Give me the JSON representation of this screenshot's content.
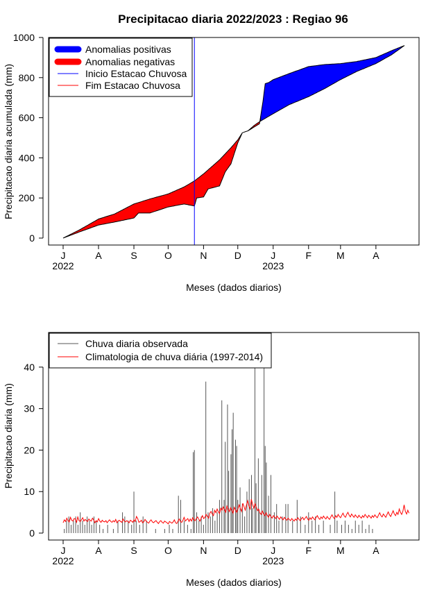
{
  "chart_data": [
    {
      "type": "area",
      "title": "Precipitacao diaria 2022/2023 : Regiao 96",
      "xlabel": "Meses (dados diarios)",
      "ylabel": "Precipitacao diaria acumulada (mm)",
      "ylim": [
        0,
        1000
      ],
      "yticks": [
        "0",
        "200",
        "400",
        "600",
        "800",
        "1000"
      ],
      "month_ticks": [
        "J",
        "A",
        "S",
        "O",
        "N",
        "D",
        "J",
        "F",
        "M",
        "A"
      ],
      "year_labels": [
        "2022",
        "2023"
      ],
      "x_start": "2022-07-01",
      "x_end": "2023-04-30",
      "legend": {
        "position": "top-left",
        "entries": [
          {
            "label": "Anomalias positivas",
            "color": "#0000ff",
            "style": "thick"
          },
          {
            "label": "Anomalias negativas",
            "color": "#ff0000",
            "style": "thick"
          },
          {
            "label": "Inicio Estacao Chuvosa",
            "color": "#0000ff",
            "style": "thin"
          },
          {
            "label": "Fim Estacao Chuvosa",
            "color": "#ff0000",
            "style": "thin"
          }
        ]
      },
      "rainy_season_start": "2022-10-24",
      "series": [
        {
          "name": "Climatologia",
          "dates": [
            "2022-07-01",
            "2022-07-15",
            "2022-08-01",
            "2022-08-15",
            "2022-09-01",
            "2022-09-15",
            "2022-10-01",
            "2022-10-15",
            "2022-10-24",
            "2022-11-01",
            "2022-11-15",
            "2022-11-25",
            "2022-12-01",
            "2022-12-05",
            "2022-12-10",
            "2022-12-15",
            "2022-12-20",
            "2023-01-01",
            "2023-01-15",
            "2023-02-01",
            "2023-02-15",
            "2023-03-01",
            "2023-03-15",
            "2023-04-01",
            "2023-04-15",
            "2023-04-26"
          ],
          "values": [
            0,
            40,
            95,
            120,
            170,
            195,
            220,
            255,
            285,
            320,
            390,
            450,
            490,
            525,
            535,
            560,
            580,
            620,
            665,
            705,
            745,
            790,
            830,
            870,
            915,
            960
          ]
        },
        {
          "name": "Observado",
          "dates": [
            "2022-07-01",
            "2022-07-15",
            "2022-08-01",
            "2022-08-15",
            "2022-09-01",
            "2022-09-05",
            "2022-09-15",
            "2022-10-01",
            "2022-10-15",
            "2022-10-24",
            "2022-10-26",
            "2022-11-01",
            "2022-11-05",
            "2022-11-15",
            "2022-11-20",
            "2022-11-25",
            "2022-12-01",
            "2022-12-05",
            "2022-12-10",
            "2022-12-20",
            "2022-12-23",
            "2022-12-25",
            "2022-12-28",
            "2023-01-01",
            "2023-01-15",
            "2023-02-01",
            "2023-02-15",
            "2023-03-01",
            "2023-03-15",
            "2023-04-01",
            "2023-04-15",
            "2023-04-26"
          ],
          "values": [
            0,
            30,
            65,
            80,
            100,
            125,
            125,
            155,
            170,
            160,
            200,
            205,
            245,
            260,
            330,
            370,
            475,
            525,
            535,
            570,
            680,
            770,
            775,
            790,
            820,
            855,
            865,
            870,
            880,
            900,
            935,
            960
          ]
        }
      ]
    },
    {
      "type": "bar",
      "xlabel": "Meses (dados diarios)",
      "ylabel": "Precipitacao diaria (mm)",
      "ylim": [
        0,
        45
      ],
      "yticks": [
        "0",
        "10",
        "20",
        "30",
        "40"
      ],
      "month_ticks": [
        "J",
        "A",
        "S",
        "O",
        "N",
        "D",
        "J",
        "F",
        "M",
        "A"
      ],
      "year_labels": [
        "2022",
        "2023"
      ],
      "x_start": "2022-07-01",
      "x_end": "2023-04-30",
      "legend": {
        "position": "top-left",
        "entries": [
          {
            "label": "Chuva diaria observada",
            "color": "#555555"
          },
          {
            "label": "Climatologia de chuva diária (1997-2014)",
            "color": "#ff0000"
          }
        ]
      },
      "observed_daily": [
        {
          "date": "2022-07-02",
          "value": 1
        },
        {
          "date": "2022-07-04",
          "value": 3
        },
        {
          "date": "2022-07-06",
          "value": 4
        },
        {
          "date": "2022-07-08",
          "value": 2
        },
        {
          "date": "2022-07-10",
          "value": 3
        },
        {
          "date": "2022-07-12",
          "value": 4
        },
        {
          "date": "2022-07-14",
          "value": 2
        },
        {
          "date": "2022-07-16",
          "value": 5
        },
        {
          "date": "2022-07-18",
          "value": 3
        },
        {
          "date": "2022-07-20",
          "value": 2
        },
        {
          "date": "2022-07-22",
          "value": 4
        },
        {
          "date": "2022-07-24",
          "value": 3
        },
        {
          "date": "2022-07-26",
          "value": 2
        },
        {
          "date": "2022-07-28",
          "value": 4
        },
        {
          "date": "2022-07-30",
          "value": 3
        },
        {
          "date": "2022-08-02",
          "value": 2
        },
        {
          "date": "2022-08-05",
          "value": 1
        },
        {
          "date": "2022-08-09",
          "value": 2
        },
        {
          "date": "2022-08-14",
          "value": 1
        },
        {
          "date": "2022-08-18",
          "value": 3
        },
        {
          "date": "2022-08-22",
          "value": 5
        },
        {
          "date": "2022-08-24",
          "value": 4
        },
        {
          "date": "2022-08-27",
          "value": 3
        },
        {
          "date": "2022-08-30",
          "value": 2
        },
        {
          "date": "2022-09-01",
          "value": 10
        },
        {
          "date": "2022-09-03",
          "value": 3
        },
        {
          "date": "2022-09-06",
          "value": 2
        },
        {
          "date": "2022-09-09",
          "value": 4
        },
        {
          "date": "2022-09-12",
          "value": 3
        },
        {
          "date": "2022-09-20",
          "value": 1
        },
        {
          "date": "2022-09-28",
          "value": 1
        },
        {
          "date": "2022-10-02",
          "value": 2
        },
        {
          "date": "2022-10-05",
          "value": 1
        },
        {
          "date": "2022-10-10",
          "value": 9
        },
        {
          "date": "2022-10-12",
          "value": 8
        },
        {
          "date": "2022-10-15",
          "value": 3
        },
        {
          "date": "2022-10-18",
          "value": 2
        },
        {
          "date": "2022-10-21",
          "value": 1
        },
        {
          "date": "2022-10-23",
          "value": 19.5
        },
        {
          "date": "2022-10-24",
          "value": 20
        },
        {
          "date": "2022-10-26",
          "value": 5
        },
        {
          "date": "2022-10-28",
          "value": 3
        },
        {
          "date": "2022-10-30",
          "value": 4
        },
        {
          "date": "2022-11-01",
          "value": 2
        },
        {
          "date": "2022-11-03",
          "value": 36.5
        },
        {
          "date": "2022-11-05",
          "value": 5
        },
        {
          "date": "2022-11-07",
          "value": 4
        },
        {
          "date": "2022-11-09",
          "value": 6
        },
        {
          "date": "2022-11-11",
          "value": 3
        },
        {
          "date": "2022-11-13",
          "value": 5
        },
        {
          "date": "2022-11-15",
          "value": 8
        },
        {
          "date": "2022-11-17",
          "value": 32
        },
        {
          "date": "2022-11-19",
          "value": 8
        },
        {
          "date": "2022-11-20",
          "value": 22
        },
        {
          "date": "2022-11-22",
          "value": 31
        },
        {
          "date": "2022-11-23",
          "value": 15
        },
        {
          "date": "2022-11-25",
          "value": 19
        },
        {
          "date": "2022-11-26",
          "value": 25
        },
        {
          "date": "2022-11-27",
          "value": 29
        },
        {
          "date": "2022-11-29",
          "value": 22.5
        },
        {
          "date": "2022-11-30",
          "value": 21
        },
        {
          "date": "2022-12-01",
          "value": 8
        },
        {
          "date": "2022-12-03",
          "value": 11
        },
        {
          "date": "2022-12-05",
          "value": 7
        },
        {
          "date": "2022-12-07",
          "value": 4
        },
        {
          "date": "2022-12-09",
          "value": 10
        },
        {
          "date": "2022-12-11",
          "value": 13
        },
        {
          "date": "2022-12-13",
          "value": 14
        },
        {
          "date": "2022-12-14",
          "value": 6
        },
        {
          "date": "2022-12-16",
          "value": 42
        },
        {
          "date": "2022-12-17",
          "value": 12
        },
        {
          "date": "2022-12-19",
          "value": 18
        },
        {
          "date": "2022-12-20",
          "value": 5
        },
        {
          "date": "2022-12-22",
          "value": 14
        },
        {
          "date": "2022-12-24",
          "value": 45
        },
        {
          "date": "2022-12-25",
          "value": 21
        },
        {
          "date": "2022-12-26",
          "value": 17
        },
        {
          "date": "2022-12-28",
          "value": 9
        },
        {
          "date": "2022-12-30",
          "value": 14
        },
        {
          "date": "2023-01-02",
          "value": 5
        },
        {
          "date": "2023-01-04",
          "value": 7
        },
        {
          "date": "2023-01-06",
          "value": 3
        },
        {
          "date": "2023-01-09",
          "value": 4
        },
        {
          "date": "2023-01-12",
          "value": 7
        },
        {
          "date": "2023-01-14",
          "value": 7
        },
        {
          "date": "2023-01-18",
          "value": 3
        },
        {
          "date": "2023-01-22",
          "value": 8
        },
        {
          "date": "2023-01-25",
          "value": 4
        },
        {
          "date": "2023-01-29",
          "value": 2
        },
        {
          "date": "2023-02-01",
          "value": 5
        },
        {
          "date": "2023-02-04",
          "value": 3
        },
        {
          "date": "2023-02-07",
          "value": 4
        },
        {
          "date": "2023-02-10",
          "value": 2
        },
        {
          "date": "2023-02-14",
          "value": 3
        },
        {
          "date": "2023-02-20",
          "value": 2
        },
        {
          "date": "2023-02-24",
          "value": 10
        },
        {
          "date": "2023-02-26",
          "value": 3
        },
        {
          "date": "2023-03-02",
          "value": 2
        },
        {
          "date": "2023-03-05",
          "value": 3
        },
        {
          "date": "2023-03-08",
          "value": 2
        },
        {
          "date": "2023-03-11",
          "value": 1
        },
        {
          "date": "2023-03-14",
          "value": 3
        },
        {
          "date": "2023-03-17",
          "value": 2
        },
        {
          "date": "2023-03-20",
          "value": 3
        },
        {
          "date": "2023-03-23",
          "value": 1
        },
        {
          "date": "2023-03-26",
          "value": 2
        },
        {
          "date": "2023-03-29",
          "value": 1
        }
      ],
      "climatology_daily_mm": [
        2.5,
        3.2,
        2.8,
        3.6,
        3.0,
        2.7,
        3.8,
        3.1,
        2.9,
        3.5,
        3.4,
        2.6,
        3.9,
        3.0,
        2.8,
        3.2,
        3.7,
        2.9,
        3.3,
        3.0,
        2.8,
        3.4,
        3.1,
        2.9,
        3.6,
        3.2,
        2.5,
        3.0,
        2.7,
        3.5,
        2.9,
        2.6,
        3.1,
        2.8,
        2.7,
        3.0,
        2.5,
        2.9,
        3.2,
        2.8,
        2.6,
        3.0,
        2.7,
        3.3,
        2.5,
        2.9,
        3.1,
        2.8,
        2.6,
        3.4,
        2.9,
        2.7,
        3.0,
        2.8,
        2.5,
        3.1,
        2.9,
        2.6,
        3.2,
        2.8,
        4.0,
        3.5,
        2.6,
        2.8,
        3.1,
        2.5,
        2.7,
        3.3,
        2.9,
        2.6,
        2.4,
        2.9,
        3.2,
        2.7,
        2.5,
        2.8,
        3.0,
        2.6,
        2.3,
        2.8,
        3.0,
        2.6,
        2.4,
        2.9,
        2.7,
        2.5,
        2.2,
        2.8,
        2.6,
        2.4,
        2.7,
        3.2,
        2.5,
        2.3,
        2.9,
        3.4,
        2.8,
        2.6,
        3.1,
        3.8,
        2.9,
        3.2,
        3.5,
        2.8,
        3.4,
        2.9,
        3.7,
        3.2,
        3.0,
        3.5,
        3.9,
        3.3,
        2.9,
        3.6,
        4.2,
        3.5,
        3.8,
        4.5,
        4.0,
        3.6,
        4.8,
        5.2,
        4.6,
        4.2,
        5.5,
        4.9,
        5.8,
        5.1,
        4.7,
        6.0,
        5.5,
        6.3,
        5.6,
        5.0,
        6.5,
        5.8,
        5.2,
        6.1,
        5.5,
        4.8,
        6.2,
        5.6,
        5.0,
        5.8,
        6.8,
        5.9,
        5.2,
        7.2,
        6.4,
        5.5,
        6.8,
        7.8,
        6.5,
        5.8,
        8.2,
        6.9,
        6.0,
        7.1,
        6.3,
        5.4,
        5.8,
        4.9,
        4.5,
        5.3,
        4.6,
        4.2,
        4.9,
        4.3,
        3.8,
        4.5,
        4.0,
        3.6,
        4.2,
        3.9,
        3.5,
        4.1,
        3.7,
        3.3,
        3.9,
        3.5,
        3.2,
        3.8,
        3.4,
        3.1,
        3.6,
        3.3,
        3.0,
        3.5,
        3.2,
        2.9,
        3.4,
        3.1,
        3.7,
        3.3,
        3.0,
        3.5,
        3.8,
        3.2,
        3.6,
        4.0,
        3.4,
        3.1,
        3.7,
        3.3,
        3.9,
        3.5,
        3.2,
        3.8,
        4.2,
        3.6,
        3.3,
        3.9,
        3.5,
        4.1,
        3.7,
        3.4,
        4.0,
        3.6,
        3.3,
        3.9,
        4.4,
        3.8,
        3.5,
        4.2,
        3.8,
        4.5,
        4.0,
        3.7,
        4.3,
        4.8,
        4.1,
        3.8,
        4.5,
        5.0,
        4.3,
        3.9,
        4.6,
        4.2,
        3.8,
        4.4,
        4.0,
        3.7,
        4.3,
        3.9,
        3.6,
        4.2,
        3.8,
        4.5,
        4.1,
        3.7,
        4.3,
        4.0,
        3.6,
        4.2,
        3.8,
        4.4,
        4.0,
        3.7,
        4.3,
        4.9,
        4.2,
        3.9,
        4.6,
        4.2,
        3.8,
        4.5,
        5.1,
        4.4,
        4.0,
        4.7,
        5.4,
        4.6,
        4.2,
        5.0,
        4.5,
        5.8,
        5.0,
        4.5,
        5.3,
        6.8,
        5.2,
        4.6,
        5.5,
        4.8
      ]
    }
  ]
}
